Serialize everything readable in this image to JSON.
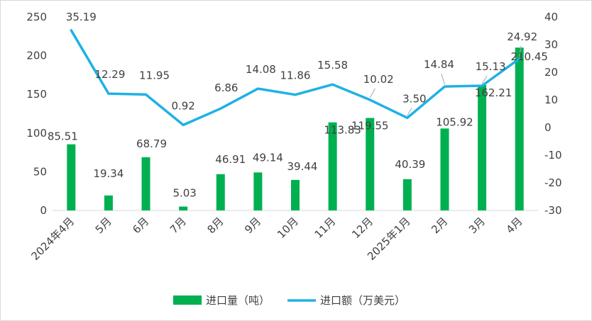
{
  "chart_data": {
    "type": "bar+line",
    "categories": [
      "2024年4月",
      "5月",
      "6月",
      "7月",
      "8月",
      "9月",
      "10月",
      "11月",
      "12月",
      "2025年1月",
      "2月",
      "3月",
      "4月"
    ],
    "series": [
      {
        "name": "进口量（吨）",
        "type": "bar",
        "axis": "left",
        "color": "#00b050",
        "values": [
          85.51,
          19.34,
          68.79,
          5.03,
          46.91,
          49.14,
          39.44,
          113.83,
          119.55,
          40.39,
          105.92,
          162.21,
          210.45
        ]
      },
      {
        "name": "进口额（万美元）",
        "type": "line",
        "axis": "right",
        "color": "#1fb1e6",
        "values": [
          35.19,
          12.29,
          11.95,
          0.92,
          6.86,
          14.08,
          11.86,
          15.58,
          10.02,
          3.5,
          14.84,
          15.13,
          24.92
        ]
      }
    ],
    "y_left": {
      "range": [
        0,
        250
      ],
      "ticks": [
        0,
        50,
        100,
        150,
        200,
        250
      ]
    },
    "y_right": {
      "range": [
        -30,
        40
      ],
      "ticks": [
        -30,
        -20,
        -10,
        0,
        10,
        20,
        30,
        40
      ]
    },
    "grid": false,
    "legend_position": "bottom"
  }
}
